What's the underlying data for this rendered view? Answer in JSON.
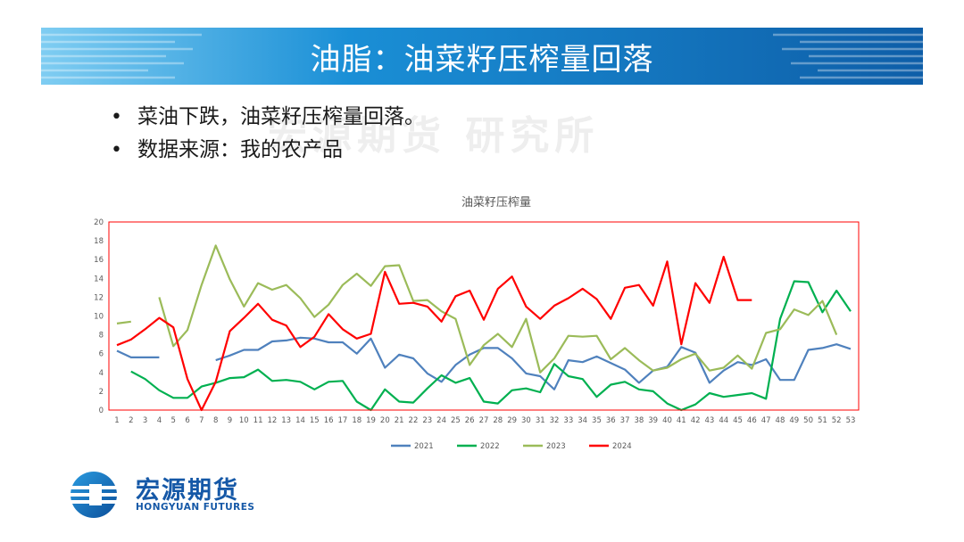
{
  "slide": {
    "title": "油脂：油菜籽压榨量回落",
    "bullets": [
      "菜油下跌，油菜籽压榨量回落。",
      "数据来源：我的农产品"
    ],
    "watermark": "宏源期货 研究所"
  },
  "logo": {
    "name_cn": "宏源期货",
    "name_en": "HONGYUAN FUTURES"
  },
  "chart_data": {
    "type": "line",
    "title": "油菜籽压榨量",
    "xlabel": "",
    "ylabel": "",
    "x": [
      1,
      2,
      3,
      4,
      5,
      6,
      7,
      8,
      9,
      10,
      11,
      12,
      13,
      14,
      15,
      16,
      17,
      18,
      19,
      20,
      21,
      22,
      23,
      24,
      25,
      26,
      27,
      28,
      29,
      30,
      31,
      32,
      33,
      34,
      35,
      36,
      37,
      38,
      39,
      40,
      41,
      42,
      43,
      44,
      45,
      46,
      47,
      48,
      49,
      50,
      51,
      52,
      53
    ],
    "ylim": [
      0,
      20
    ],
    "yticks": [
      0,
      2,
      4,
      6,
      8,
      10,
      12,
      14,
      16,
      18,
      20
    ],
    "legend_position": "bottom",
    "series": [
      {
        "name": "2021",
        "color": "#4f81bd",
        "values": [
          6.3,
          5.6,
          5.6,
          5.6,
          null,
          null,
          null,
          5.3,
          5.8,
          6.4,
          6.4,
          7.3,
          7.4,
          7.7,
          7.6,
          7.2,
          7.2,
          6.0,
          7.6,
          4.5,
          5.9,
          5.5,
          3.9,
          3.0,
          4.8,
          5.9,
          6.6,
          6.6,
          5.5,
          3.9,
          3.6,
          2.2,
          5.3,
          5.1,
          5.7,
          5.0,
          4.3,
          2.9,
          4.2,
          4.6,
          6.7,
          6.1,
          2.9,
          4.2,
          5.1,
          4.8,
          5.4,
          3.2,
          3.2,
          6.4,
          6.6,
          7.0,
          6.5
        ]
      },
      {
        "name": "2022",
        "color": "#00b050",
        "values": [
          null,
          4.1,
          3.3,
          2.1,
          1.3,
          1.3,
          2.5,
          2.9,
          3.4,
          3.5,
          4.3,
          3.1,
          3.2,
          3.0,
          2.2,
          3.0,
          3.1,
          0.9,
          0.0,
          2.2,
          0.9,
          0.8,
          2.3,
          3.7,
          2.9,
          3.4,
          0.9,
          0.7,
          2.1,
          2.3,
          1.9,
          4.9,
          3.6,
          3.3,
          1.4,
          2.7,
          3.0,
          2.2,
          2.0,
          0.7,
          0.0,
          0.6,
          1.8,
          1.4,
          1.6,
          1.8,
          1.2,
          9.7,
          13.7,
          13.6,
          10.4,
          12.7,
          10.5
        ]
      },
      {
        "name": "2023",
        "color": "#9bbb59",
        "values": [
          9.2,
          9.4,
          null,
          12.0,
          6.8,
          8.5,
          13.3,
          17.5,
          13.9,
          11.0,
          13.5,
          12.8,
          13.3,
          11.9,
          9.9,
          11.2,
          13.3,
          14.5,
          13.2,
          15.3,
          15.4,
          11.6,
          11.7,
          10.5,
          9.7,
          4.8,
          6.9,
          8.1,
          6.7,
          9.7,
          4.0,
          5.5,
          7.9,
          7.8,
          7.9,
          5.4,
          6.6,
          5.3,
          4.2,
          4.5,
          5.4,
          6.0,
          4.2,
          4.5,
          5.8,
          4.4,
          8.2,
          8.6,
          10.7,
          10.1,
          11.6,
          8.0,
          null
        ]
      },
      {
        "name": "2024",
        "color": "#ff0000",
        "values": [
          6.9,
          7.5,
          8.6,
          9.8,
          8.8,
          3.3,
          0.0,
          3.0,
          8.4,
          9.8,
          11.3,
          9.6,
          9.0,
          6.7,
          7.8,
          10.2,
          8.6,
          7.6,
          8.1,
          14.7,
          11.3,
          11.4,
          11.0,
          9.4,
          12.1,
          12.7,
          9.6,
          12.9,
          14.2,
          11.0,
          9.7,
          11.1,
          11.9,
          12.9,
          11.8,
          9.7,
          13.0,
          13.3,
          11.1,
          15.8,
          7.0,
          13.5,
          11.4,
          16.3,
          11.7,
          11.7,
          null,
          null,
          null,
          null,
          null,
          null,
          null
        ]
      }
    ]
  }
}
